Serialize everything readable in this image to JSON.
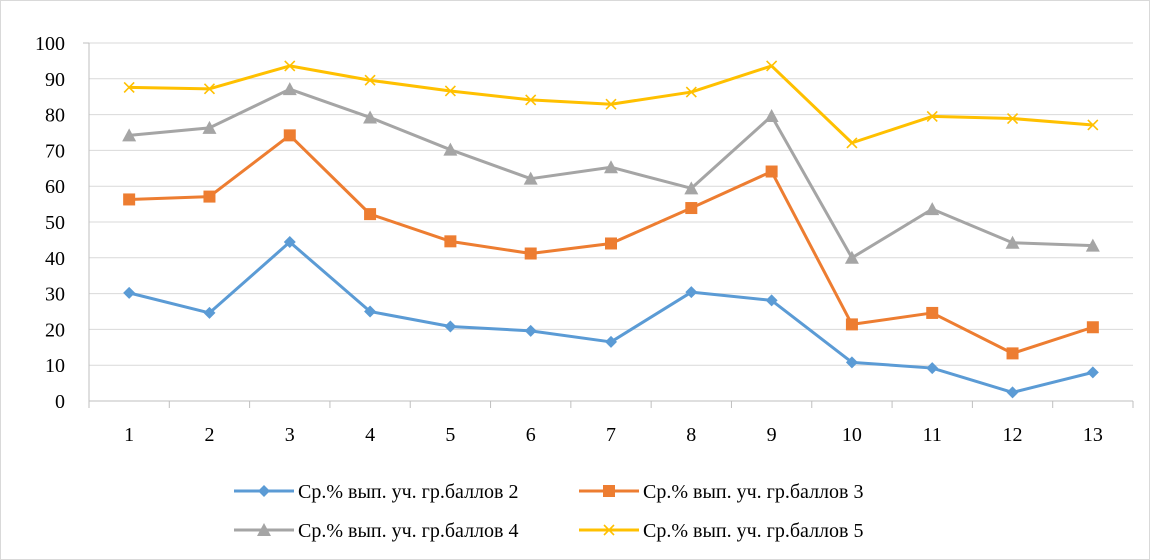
{
  "chart_data": {
    "type": "line",
    "title": "",
    "xlabel": "",
    "ylabel": "",
    "categories": [
      "1",
      "2",
      "3",
      "4",
      "5",
      "6",
      "7",
      "8",
      "9",
      "10",
      "11",
      "12",
      "13"
    ],
    "ylim": [
      0,
      100
    ],
    "yticks": [
      "0",
      "10",
      "20",
      "30",
      "40",
      "50",
      "60",
      "70",
      "80",
      "90",
      "100"
    ],
    "grid": "horizontal",
    "legend_position": "bottom",
    "series": [
      {
        "name": "Ср.% вып. уч. гр.баллов 2",
        "color": "#5b9bd5",
        "marker": "diamond",
        "values": [
          30.2,
          24.6,
          44.4,
          25.0,
          20.8,
          19.6,
          16.5,
          30.4,
          28.1,
          10.8,
          9.2,
          2.4,
          8.0
        ]
      },
      {
        "name": "Ср.% вып. уч. гр.баллов 3",
        "color": "#ed7d31",
        "marker": "square",
        "values": [
          56.3,
          57.1,
          74.2,
          52.2,
          44.6,
          41.2,
          44.0,
          53.9,
          64.1,
          21.4,
          24.6,
          13.3,
          20.6
        ]
      },
      {
        "name": "Ср.% вып. уч. гр.баллов 4",
        "color": "#a5a5a5",
        "marker": "triangle",
        "values": [
          74.2,
          76.3,
          87.1,
          79.2,
          70.2,
          62.1,
          65.3,
          59.4,
          79.6,
          40.0,
          53.6,
          44.2,
          43.4
        ]
      },
      {
        "name": "Ср.% вып. уч. гр.баллов 5",
        "color": "#ffc000",
        "marker": "x",
        "values": [
          87.6,
          87.2,
          93.6,
          89.6,
          86.6,
          84.1,
          82.9,
          86.3,
          93.6,
          72.1,
          79.5,
          78.9,
          77.1
        ]
      }
    ]
  }
}
